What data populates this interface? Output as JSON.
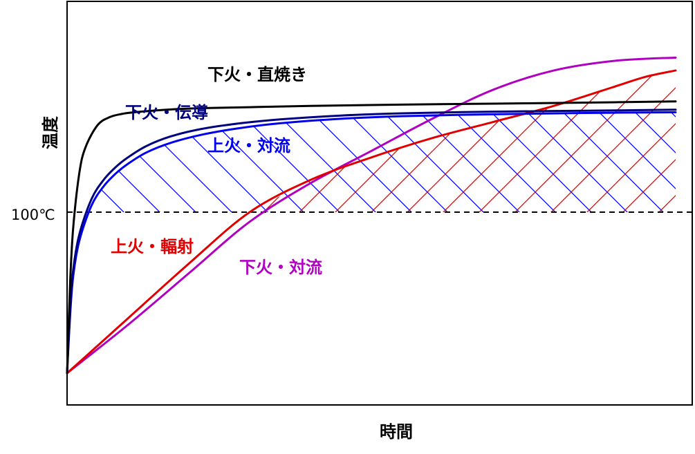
{
  "chart_data": {
    "type": "line",
    "title": "",
    "xlabel": "時間",
    "ylabel": "温度",
    "xlim": [
      0,
      100
    ],
    "ylim": [
      0,
      100
    ],
    "grid": false,
    "y_ticks": [
      {
        "value": 50,
        "label": "100℃"
      }
    ],
    "reference_line": {
      "y": 50,
      "style": "dashed",
      "color": "#000000"
    },
    "series": [
      {
        "name": "下火・直焼き",
        "color": "#000000",
        "x": [
          0,
          0.5,
          1,
          2,
          3,
          5,
          7,
          9,
          11,
          14,
          18,
          22,
          30,
          40,
          55,
          70,
          85,
          100
        ],
        "y": [
          0,
          28,
          45,
          62,
          70,
          77,
          79.5,
          80.5,
          81,
          81.5,
          82,
          82.3,
          82.6,
          83,
          83.4,
          83.7,
          84,
          84.4
        ]
      },
      {
        "name": "下火・伝導",
        "color": "#00007f",
        "x": [
          0,
          0.5,
          1,
          2,
          4,
          6,
          8,
          10,
          13,
          17,
          22,
          28,
          35,
          45,
          55,
          70,
          85,
          100
        ],
        "y": [
          0,
          20,
          32,
          43,
          54,
          60,
          64,
          67,
          70.5,
          73.5,
          75.8,
          77.5,
          78.8,
          80,
          80.7,
          81.2,
          81.5,
          81.8
        ]
      },
      {
        "name": "上火・対流",
        "color": "#0000ee",
        "x": [
          0,
          0.5,
          1,
          2,
          4,
          6,
          8,
          10,
          13,
          17,
          22,
          28,
          35,
          45,
          55,
          70,
          85,
          100
        ],
        "y": [
          0,
          18,
          30,
          41,
          52,
          58,
          62,
          65,
          68.5,
          71.5,
          74,
          76,
          77.6,
          79,
          79.8,
          80.4,
          80.8,
          81
        ]
      },
      {
        "name": "上火・輻射",
        "color": "#e00000",
        "x": [
          0,
          10,
          20,
          30,
          40,
          50,
          60,
          70,
          80,
          90,
          95,
          100
        ],
        "y": [
          0,
          17,
          34,
          50,
          60,
          67,
          73,
          78,
          83,
          89,
          92,
          94
        ]
      },
      {
        "name": "下火・対流",
        "color": "#b000c0",
        "x": [
          0,
          10,
          20,
          30,
          40,
          50,
          60,
          70,
          80,
          90,
          100
        ],
        "y": [
          0,
          15,
          31,
          47,
          59,
          69,
          79,
          88,
          94,
          97,
          98
        ]
      }
    ],
    "shaded_regions": [
      {
        "between": [
          "上火・対流",
          "100℃"
        ],
        "color": "#0000ee",
        "hatch": "diagonal"
      },
      {
        "between": [
          "上火・輻射",
          "100℃"
        ],
        "color": "#e00000",
        "hatch": "diagonal"
      }
    ]
  }
}
